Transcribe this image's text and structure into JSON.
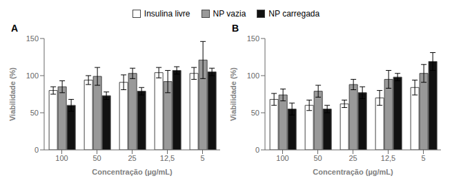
{
  "chart_data": [
    {
      "type": "bar",
      "title": "A",
      "xlabel": "Concentração (µg/mL)",
      "ylabel": "Viabilidade (%)",
      "categories": [
        "100",
        "50",
        "25",
        "12,5",
        "5"
      ],
      "series": [
        {
          "name": "Insulina livre",
          "color": "#ffffff",
          "values": [
            80,
            94,
            91,
            104,
            103
          ],
          "errors": [
            5,
            6,
            10,
            7,
            8
          ]
        },
        {
          "name": "NP vazia",
          "color": "#999999",
          "values": [
            85,
            99,
            103,
            92,
            121
          ],
          "errors": [
            8,
            12,
            7,
            15,
            25
          ]
        },
        {
          "name": "NP carregada",
          "color": "#111111",
          "values": [
            60,
            73,
            79,
            107,
            105
          ],
          "errors": [
            8,
            5,
            5,
            5,
            5
          ]
        }
      ],
      "ylim": [
        0,
        150
      ],
      "yticks": [
        0,
        50,
        100,
        150
      ]
    },
    {
      "type": "bar",
      "title": "B",
      "xlabel": "Concentração (µg/mL)",
      "ylabel": "Viabilidade (%)",
      "categories": [
        "100",
        "50",
        "25",
        "12,5",
        "5"
      ],
      "series": [
        {
          "name": "Insulina livre",
          "color": "#ffffff",
          "values": [
            68,
            60,
            62,
            70,
            84
          ],
          "errors": [
            8,
            7,
            5,
            10,
            10
          ]
        },
        {
          "name": "NP vazia",
          "color": "#999999",
          "values": [
            74,
            79,
            88,
            95,
            103
          ],
          "errors": [
            8,
            8,
            7,
            12,
            12
          ]
        },
        {
          "name": "NP carregada",
          "color": "#111111",
          "values": [
            55,
            55,
            77,
            98,
            119
          ],
          "errors": [
            8,
            5,
            8,
            5,
            12
          ]
        }
      ],
      "ylim": [
        0,
        150
      ],
      "yticks": [
        0,
        50,
        100,
        150
      ]
    }
  ]
}
